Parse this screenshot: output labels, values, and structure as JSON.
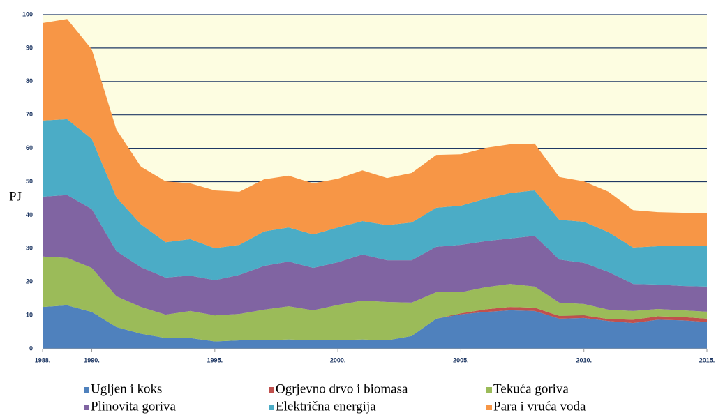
{
  "chart_data": {
    "type": "stacked_area",
    "y_label": "PJ",
    "x": [
      1988,
      1989,
      1990,
      1991,
      1992,
      1993,
      1994,
      1995,
      1996,
      1997,
      1998,
      1999,
      2000,
      2001,
      2002,
      2003,
      2004,
      2005,
      2006,
      2007,
      2008,
      2009,
      2010,
      2011,
      2012,
      2013,
      2014,
      2015
    ],
    "xlim": [
      1988,
      2015
    ],
    "xticks": [
      {
        "value": 1988,
        "label": "1988."
      },
      {
        "value": 1990,
        "label": "1990."
      },
      {
        "value": 1995,
        "label": "1995."
      },
      {
        "value": 2000,
        "label": "2000."
      },
      {
        "value": 2005,
        "label": "2005."
      },
      {
        "value": 2010,
        "label": "2010."
      },
      {
        "value": 2015,
        "label": "2015."
      }
    ],
    "ylim": [
      0,
      100
    ],
    "yticks": [
      0,
      10,
      20,
      30,
      40,
      50,
      60,
      70,
      80,
      90,
      100
    ],
    "grid": true,
    "plot_background": "#fdfde1",
    "grid_color": "#1f3864",
    "legend": "bottom",
    "series": [
      {
        "name": "Ugljen i koks",
        "color": "#4f81bd",
        "values": [
          12.5,
          13,
          11,
          6.5,
          4.5,
          3.2,
          3.2,
          2.2,
          2.5,
          2.5,
          2.8,
          2.5,
          2.5,
          2.8,
          2.5,
          3.8,
          9,
          10.3,
          11,
          11.5,
          11.3,
          9,
          9.2,
          8.3,
          7.7,
          8.7,
          8.5,
          8
        ]
      },
      {
        "name": "Ogrjevno drvo i biomasa",
        "color": "#c0504d",
        "values": [
          0,
          0,
          0,
          0,
          0,
          0,
          0,
          0,
          0,
          0,
          0,
          0,
          0,
          0,
          0,
          0,
          0,
          0.3,
          0.8,
          1,
          1,
          0.8,
          0.8,
          0.6,
          1,
          1,
          1,
          1
        ]
      },
      {
        "name": "Tekuća goriva",
        "color": "#9bbb59",
        "values": [
          15.1,
          14.2,
          13.2,
          9.2,
          8,
          7,
          8.1,
          7.8,
          7.9,
          9.2,
          9.9,
          9,
          10.6,
          11.6,
          11.5,
          10,
          7.9,
          6.3,
          6.6,
          6.9,
          6.3,
          4,
          3.4,
          2.8,
          2.6,
          2.2,
          2,
          2.1
        ]
      },
      {
        "name": "Plinovita goriva",
        "color": "#8064a2",
        "values": [
          17.9,
          18.8,
          17.6,
          13.5,
          11.9,
          11.1,
          10.6,
          10.5,
          11.7,
          13.1,
          13.4,
          12.7,
          12.8,
          13.8,
          12.5,
          12.7,
          13.6,
          14.2,
          13.8,
          13.6,
          15.2,
          12.9,
          12.3,
          11.3,
          8.1,
          7.3,
          7.3,
          7.5
        ]
      },
      {
        "name": "Električna energija",
        "color": "#4bacc6",
        "values": [
          22.8,
          22.7,
          21,
          16.1,
          12.8,
          10.6,
          10.9,
          9.6,
          9,
          10.3,
          10.2,
          10,
          10.4,
          10,
          10.5,
          11.3,
          11.7,
          11.7,
          12.7,
          13.6,
          13.6,
          11.9,
          12.3,
          11.9,
          10.9,
          11.5,
          11.9,
          12.1
        ]
      },
      {
        "name": "Para i vruća voda",
        "color": "#f79646",
        "values": [
          29.2,
          30,
          26.8,
          20.3,
          17.3,
          18.2,
          16.7,
          17.3,
          15.9,
          15.6,
          15.5,
          15.3,
          14.6,
          15.2,
          14.1,
          14.8,
          15.8,
          15.4,
          15.2,
          14.6,
          14,
          12.8,
          12.1,
          12.1,
          11.2,
          10.2,
          10,
          9.8
        ]
      }
    ]
  }
}
